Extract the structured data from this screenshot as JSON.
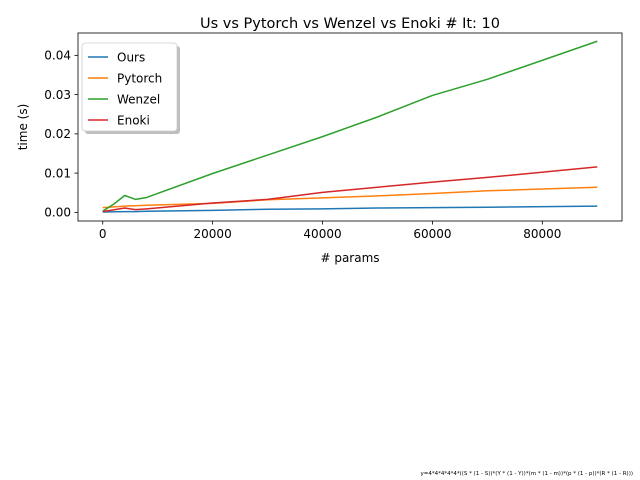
{
  "chart_data": {
    "type": "line",
    "title": "Us vs Pytorch vs Wenzel vs Enoki # It: 10",
    "xlabel": "# params",
    "ylabel": "time (s)",
    "xlim": [
      -4500,
      94500
    ],
    "ylim": [
      -0.0022,
      0.0457
    ],
    "xticks": [
      0,
      20000,
      40000,
      60000,
      80000
    ],
    "xtick_labels": [
      "0",
      "20000",
      "40000",
      "60000",
      "80000"
    ],
    "yticks": [
      0.0,
      0.01,
      0.02,
      0.03,
      0.04
    ],
    "ytick_labels": [
      "0.00",
      "0.01",
      "0.02",
      "0.03",
      "0.04"
    ],
    "grid": false,
    "legend_position": "top-left",
    "series": [
      {
        "name": "Ours",
        "color": "#1f77b4",
        "x": [
          0,
          4000,
          6000,
          8000,
          20000,
          30000,
          40000,
          50000,
          60000,
          70000,
          90000
        ],
        "y": [
          0.0001,
          0.0002,
          0.0002,
          0.0003,
          0.0005,
          0.0008,
          0.0009,
          0.0011,
          0.0012,
          0.0013,
          0.0016
        ]
      },
      {
        "name": "Pytorch",
        "color": "#ff7f0e",
        "x": [
          0,
          4000,
          6000,
          8000,
          20000,
          30000,
          40000,
          50000,
          60000,
          70000,
          90000
        ],
        "y": [
          0.0012,
          0.0016,
          0.0017,
          0.0018,
          0.0023,
          0.0032,
          0.0037,
          0.0042,
          0.0048,
          0.0055,
          0.0064
        ]
      },
      {
        "name": "Wenzel",
        "color": "#2ca02c",
        "x": [
          0,
          2000,
          4000,
          6000,
          8000,
          20000,
          30000,
          40000,
          50000,
          60000,
          70000,
          90000
        ],
        "y": [
          0.0003,
          0.0021,
          0.0043,
          0.0033,
          0.0038,
          0.0099,
          0.0146,
          0.0193,
          0.0243,
          0.0298,
          0.0339,
          0.0436
        ]
      },
      {
        "name": "Enoki",
        "color": "#d62728",
        "x": [
          0,
          4000,
          6000,
          8000,
          20000,
          30000,
          40000,
          50000,
          60000,
          70000,
          90000
        ],
        "y": [
          0.0002,
          0.0011,
          0.0007,
          0.0009,
          0.0024,
          0.0033,
          0.0051,
          0.0064,
          0.0077,
          0.0089,
          0.0116
        ]
      }
    ],
    "footnote": "y=4*4*4*4*4*((S * (1 - S))*(Y * (1 - Y))*(m * (1 - m))*(p * (1 - p))*(R * (1 - R)))"
  }
}
